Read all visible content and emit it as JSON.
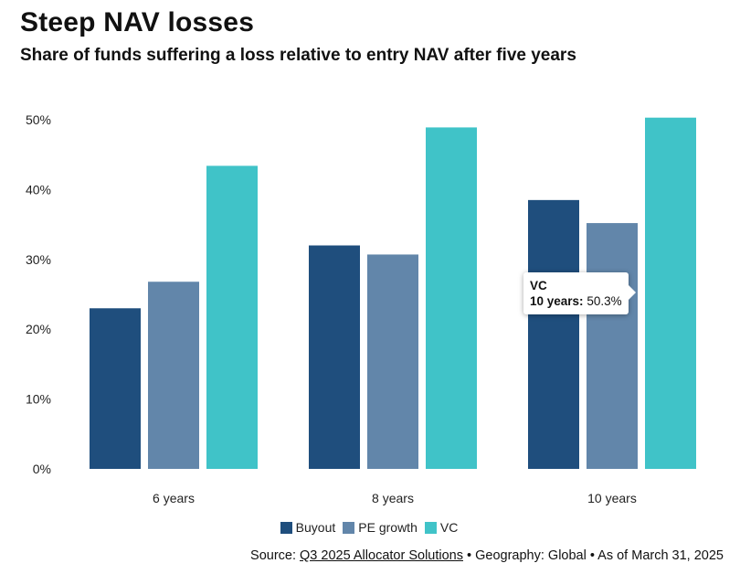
{
  "title": "Steep NAV losses",
  "subtitle": "Share of funds suffering a loss relative to entry NAV after five years",
  "chart_data": {
    "type": "bar",
    "categories": [
      "6 years",
      "8 years",
      "10 years"
    ],
    "series": [
      {
        "name": "Buyout",
        "color": "#1f4e7d",
        "values": [
          23.0,
          32.0,
          38.5
        ]
      },
      {
        "name": "PE growth",
        "color": "#6286aa",
        "values": [
          26.8,
          30.7,
          35.2
        ]
      },
      {
        "name": "VC",
        "color": "#40c3c8",
        "values": [
          43.4,
          48.9,
          50.3
        ]
      }
    ],
    "yticks": [
      0,
      10,
      20,
      30,
      40,
      50
    ],
    "ytick_labels": [
      "0%",
      "10%",
      "20%",
      "30%",
      "40%",
      "50%"
    ],
    "ylim": [
      0,
      50
    ],
    "grid": false,
    "legend_position": "bottom-center"
  },
  "tooltip": {
    "series": "VC",
    "key": "10 years:",
    "value": "50.3%"
  },
  "footer": {
    "prefix": "Source: ",
    "link_text": "Q3 2025 Allocator Solutions",
    "suffix": " • Geography: Global • As of March 31, 2025"
  }
}
